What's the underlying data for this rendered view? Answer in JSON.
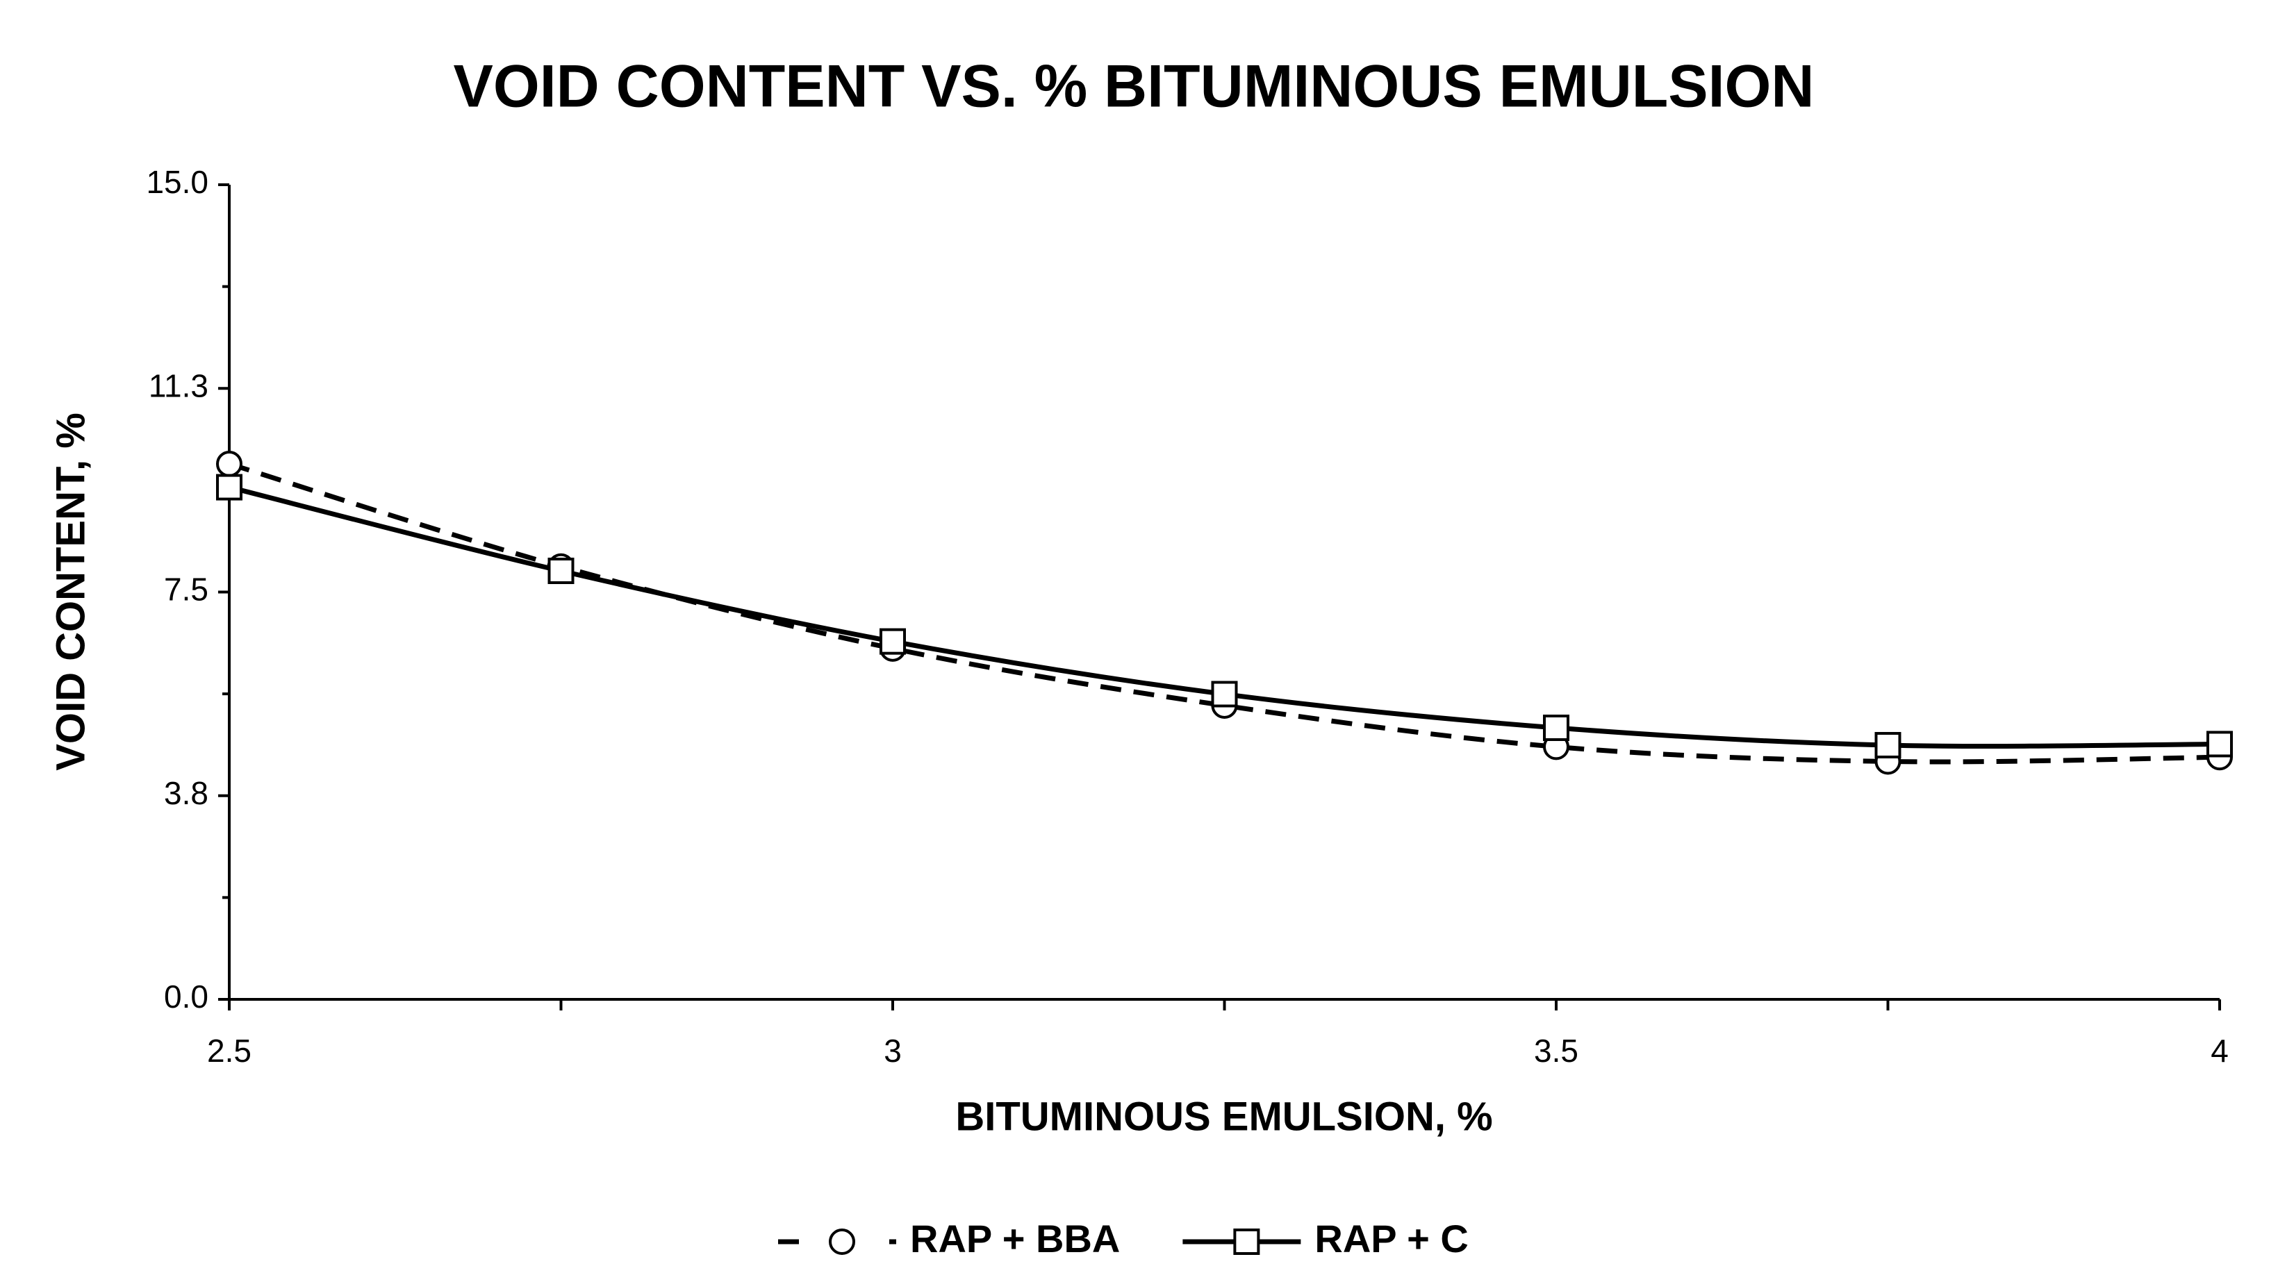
{
  "chart_data": {
    "type": "line",
    "title": "VOID CONTENT VS. % BITUMINOUS EMULSION",
    "x_label": "BITUMINOUS EMULSION, %",
    "y_label": "VOID CONTENT, %",
    "x": [
      2.5,
      2.75,
      3,
      3.25,
      3.5,
      3.75,
      4
    ],
    "series": [
      {
        "name": "RAP + BBA",
        "color": "#000000",
        "marker": "circle",
        "dashed": true,
        "values": [
          9.86,
          7.97,
          6.46,
          5.41,
          4.65,
          4.38,
          4.46
        ]
      },
      {
        "name": "RAP + C",
        "color": "#000000",
        "marker": "square",
        "dashed": false,
        "values": [
          9.43,
          7.89,
          6.59,
          5.62,
          5.0,
          4.68,
          4.7
        ]
      }
    ],
    "xlim": [
      2.5,
      4
    ],
    "xticks": [
      2.5,
      3,
      3.5,
      4
    ],
    "xminorticks": [
      2.75,
      3.25,
      3.75
    ],
    "ylim": [
      0,
      15
    ],
    "yticks": [
      {
        "value": 0,
        "label": "0.0"
      },
      {
        "value": 3.75,
        "label": "3.8"
      },
      7.5,
      {
        "value": 11.25,
        "label": "11.3"
      },
      {
        "value": 15,
        "label": "15.0"
      }
    ],
    "yminorticks": [
      1.875,
      5.625,
      9.375,
      13.125
    ],
    "grid": false,
    "legend": "bottom"
  }
}
